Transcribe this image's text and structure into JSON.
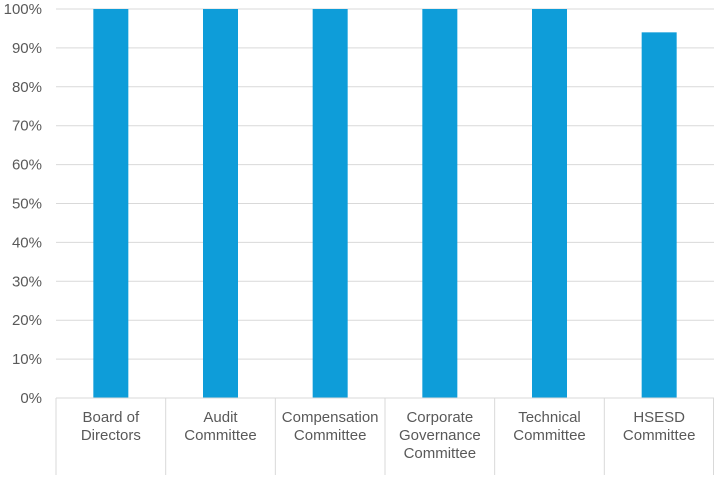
{
  "chart_data": {
    "type": "bar",
    "title": "",
    "xlabel": "",
    "ylabel": "",
    "categories": [
      [
        "Board of",
        "Directors"
      ],
      [
        "Audit",
        "Committee"
      ],
      [
        "Compensation",
        "Committee"
      ],
      [
        "Corporate",
        "Governance",
        "Committee"
      ],
      [
        "Technical",
        "Committee"
      ],
      [
        "HSESD",
        "Committee"
      ]
    ],
    "values": [
      100,
      100,
      100,
      100,
      100,
      94
    ],
    "ylim": [
      0,
      100
    ],
    "yticks": [
      0,
      10,
      20,
      30,
      40,
      50,
      60,
      70,
      80,
      90,
      100
    ],
    "ytick_labels": [
      "0%",
      "10%",
      "20%",
      "30%",
      "40%",
      "50%",
      "60%",
      "70%",
      "80%",
      "90%",
      "100%"
    ],
    "grid": true,
    "legend": "none",
    "bar_color": "#0e9dd9",
    "grid_color": "#d9d9d9",
    "text_color": "#595959"
  }
}
